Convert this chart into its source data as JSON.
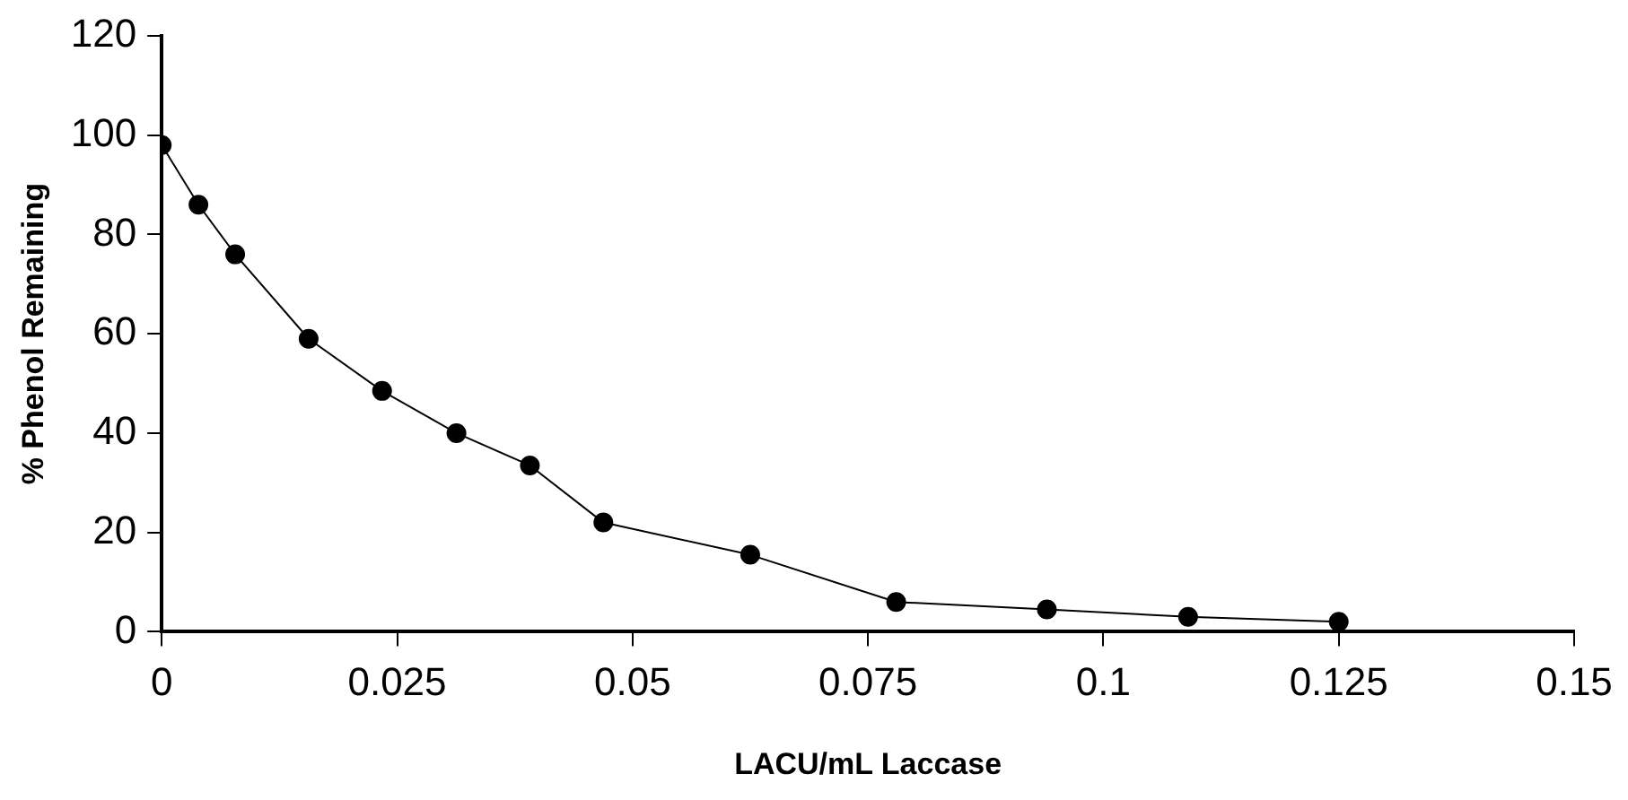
{
  "chart_data": {
    "type": "line",
    "xlabel": "LACU/mL Laccase",
    "ylabel": "% Phenol Remaining",
    "x": [
      0,
      0.0039,
      0.0078,
      0.0156,
      0.0234,
      0.0313,
      0.0391,
      0.0469,
      0.0625,
      0.078,
      0.094,
      0.109,
      0.125
    ],
    "series": [
      {
        "color": "#000000",
        "values": [
          98,
          86,
          76,
          59,
          48.5,
          40,
          33.5,
          22,
          15.5,
          6,
          4.5,
          3,
          2
        ]
      }
    ],
    "xlim": [
      0,
      0.15
    ],
    "xticks": [
      0,
      0.025,
      0.05,
      0.075,
      0.1,
      0.125,
      0.15
    ],
    "ylim": [
      0,
      120
    ],
    "yticks": [
      0,
      20,
      40,
      60,
      80,
      100,
      120
    ],
    "grid": false,
    "legend": false,
    "marker": "circle",
    "line_style": "solid"
  }
}
